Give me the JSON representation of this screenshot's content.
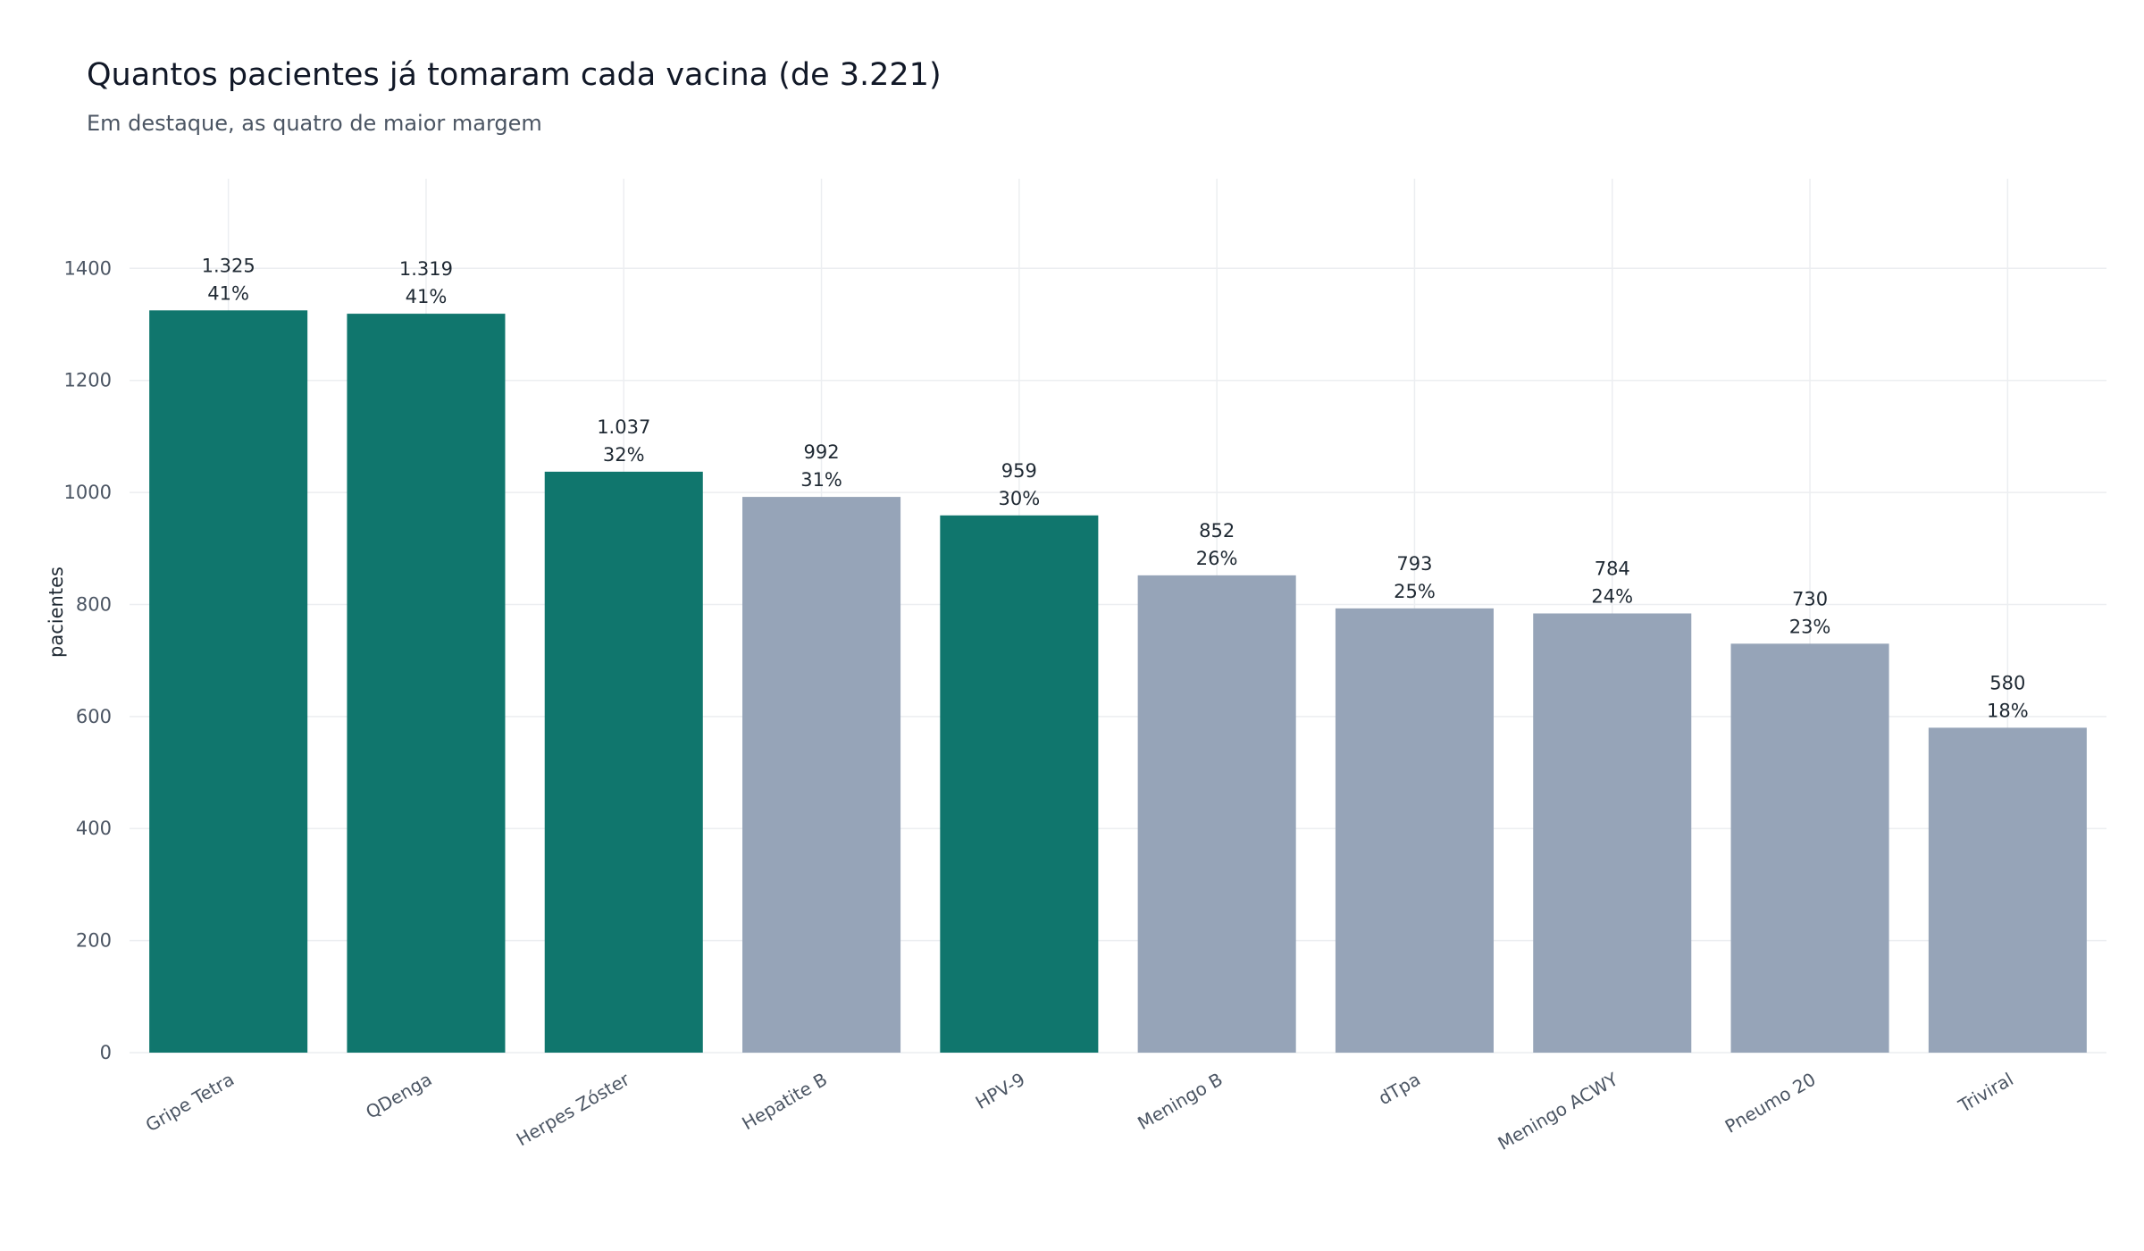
{
  "chart_data": {
    "type": "bar",
    "title": "Quantos pacientes já tomaram cada vacina (de 3.221)",
    "subtitle": "Em destaque, as quatro de maior margem",
    "ylabel": "pacientes",
    "xlabel": "",
    "ylim": [
      0,
      1560
    ],
    "yticks": [
      0,
      200,
      400,
      600,
      800,
      1000,
      1200,
      1400
    ],
    "grid": true,
    "colors": {
      "highlight": "#10766d",
      "default": "#96a4b8"
    },
    "categories": [
      "Gripe Tetra",
      "QDenga",
      "Herpes Zóster",
      "Hepatite B",
      "HPV-9",
      "Meningo B",
      "dTpa",
      "Meningo ACWY",
      "Pneumo 20",
      "Triviral"
    ],
    "values": [
      1325,
      1319,
      1037,
      992,
      959,
      852,
      793,
      784,
      730,
      580
    ],
    "value_labels": [
      "1.325",
      "1.319",
      "1.037",
      "992",
      "959",
      "852",
      "793",
      "784",
      "730",
      "580"
    ],
    "percent_labels": [
      "41%",
      "41%",
      "32%",
      "31%",
      "30%",
      "26%",
      "25%",
      "24%",
      "23%",
      "18%"
    ],
    "highlighted": [
      true,
      true,
      true,
      false,
      true,
      false,
      false,
      false,
      false,
      false
    ]
  }
}
